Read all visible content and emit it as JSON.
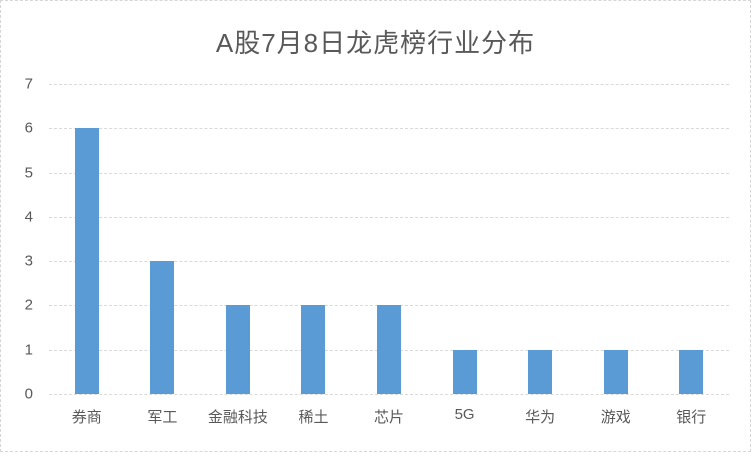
{
  "chart_data": {
    "type": "bar",
    "title": "A股7月8日龙虎榜行业分布",
    "categories": [
      "券商",
      "军工",
      "金融科技",
      "稀土",
      "芯片",
      "5G",
      "华为",
      "游戏",
      "银行"
    ],
    "values": [
      6,
      3,
      2,
      2,
      2,
      1,
      1,
      1,
      1
    ],
    "xlabel": "",
    "ylabel": "",
    "ylim": [
      0,
      7
    ],
    "yticks": [
      0,
      1,
      2,
      3,
      4,
      5,
      6,
      7
    ],
    "grid": true,
    "legend_position": "none",
    "colors": {
      "bar": "#5B9BD5",
      "gridline": "#D9D9D9",
      "text": "#595959",
      "background": "#FFFFFF",
      "border": "#D6D6D6"
    }
  }
}
